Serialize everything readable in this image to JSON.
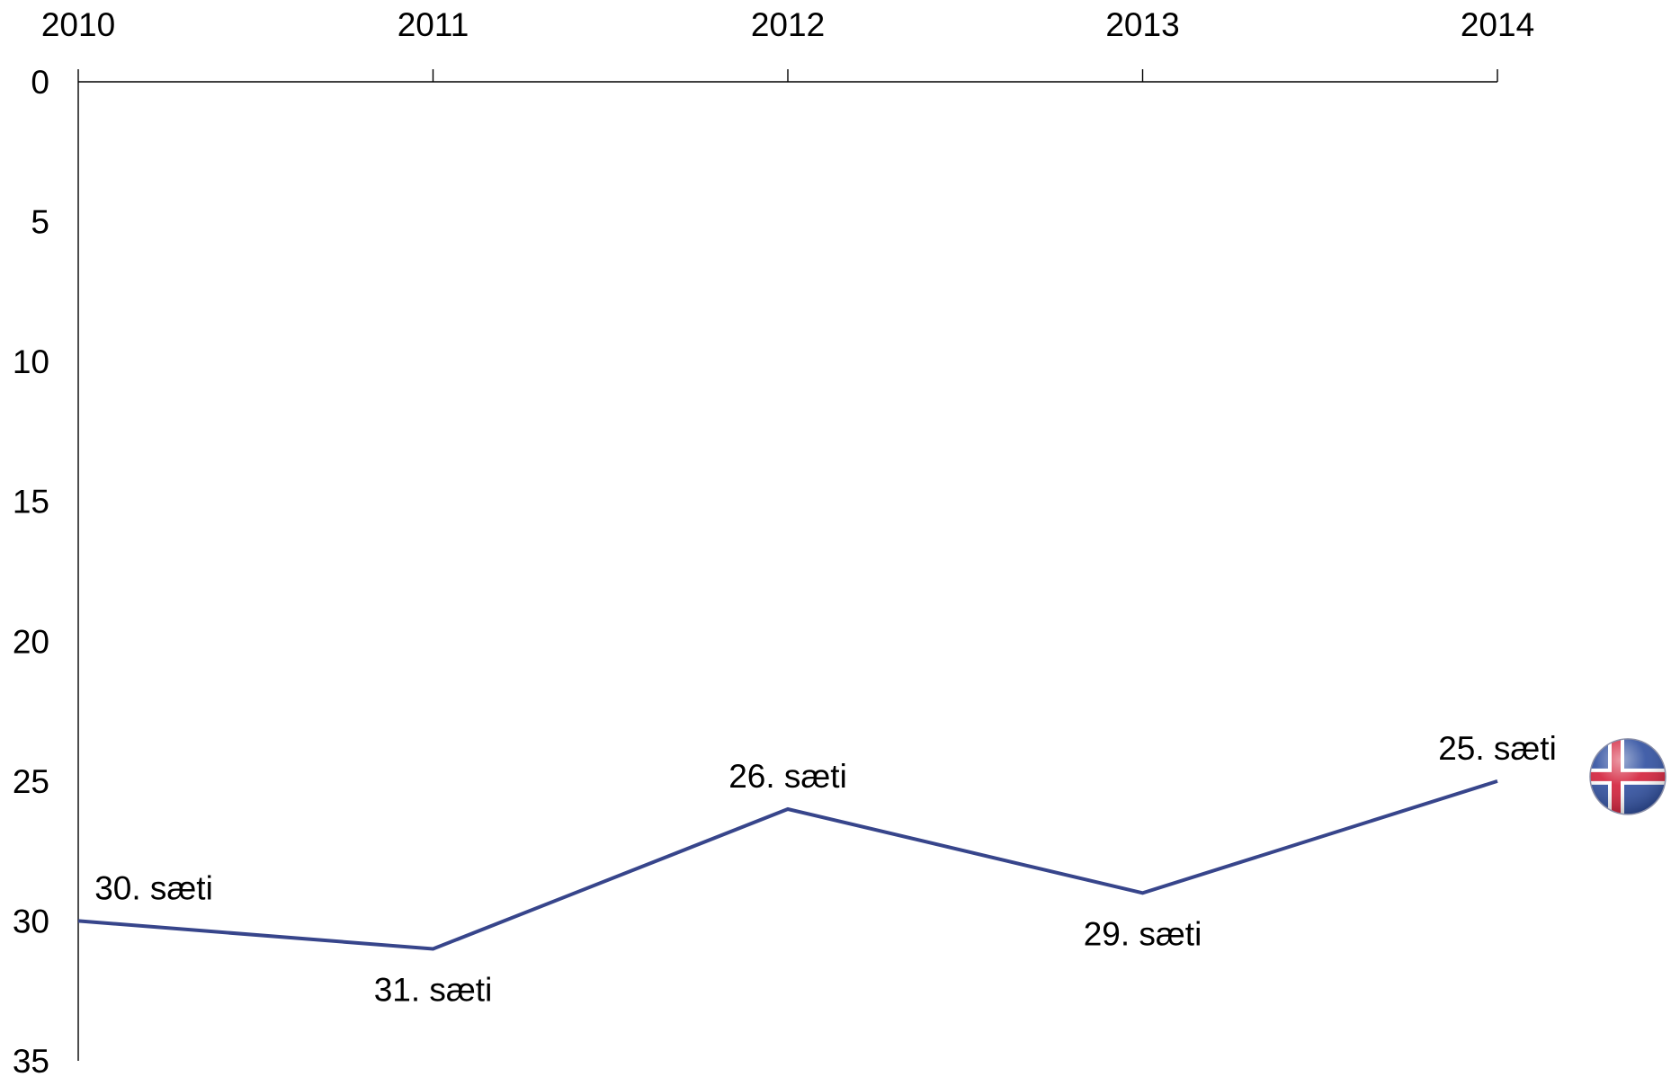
{
  "chart_data": {
    "type": "line",
    "x": [
      2010,
      2011,
      2012,
      2013,
      2014
    ],
    "x_tick_labels": [
      "2010",
      "2011",
      "2012",
      "2013",
      "2014"
    ],
    "y_tick_labels": [
      "0",
      "5",
      "10",
      "15",
      "20",
      "25",
      "30",
      "35"
    ],
    "ylim": [
      0,
      35
    ],
    "y_inverted": true,
    "x_axis_position": "top",
    "grid": false,
    "series": [
      {
        "values": [
          30,
          31,
          26,
          29,
          25
        ],
        "color": "#37458B",
        "point_labels": [
          "30. sæti",
          "31. sæti",
          "26. sæti",
          "29. sæti",
          "25. sæti"
        ],
        "point_label_positions": [
          "above",
          "below",
          "above",
          "below",
          "above"
        ]
      }
    ],
    "end_marker": {
      "icon": "iceland-flag-icon",
      "colors": {
        "field": "#2F4FA0",
        "cross_outer": "#FFFFFF",
        "cross_inner": "#D3203A"
      }
    }
  }
}
